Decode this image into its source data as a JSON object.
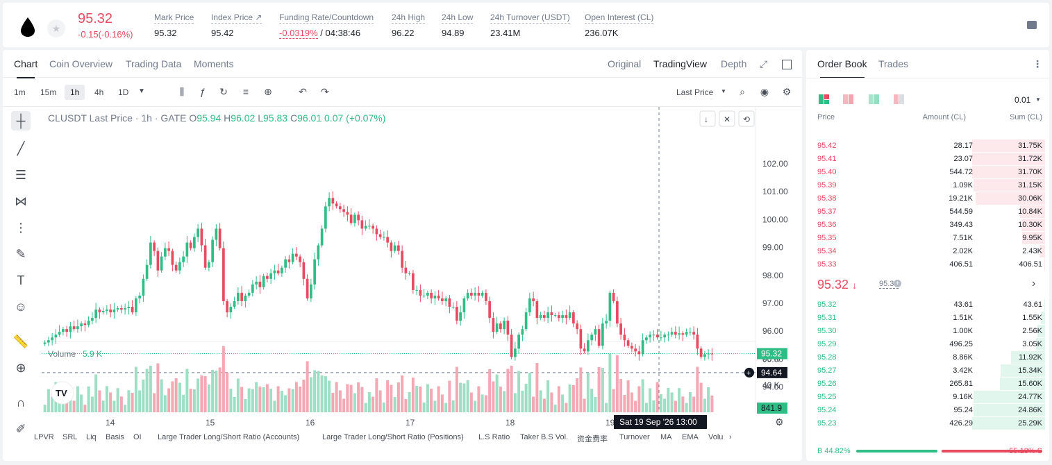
{
  "header": {
    "price": "95.32",
    "change": "-0.15(-0.16%)",
    "stats": [
      {
        "label": "Mark Price",
        "value": "95.32"
      },
      {
        "label": "Index Price ↗",
        "value": "95.42"
      },
      {
        "label": "Funding Rate/Countdown",
        "value_red": "-0.0319%",
        "value": " / 04:38:46"
      },
      {
        "label": "24h High",
        "value": "96.22"
      },
      {
        "label": "24h Low",
        "value": "94.89"
      },
      {
        "label": "24h Turnover (USDT)",
        "value": "23.41M"
      },
      {
        "label": "Open Interest (CL)",
        "value": "236.07K"
      }
    ]
  },
  "chart_tabs": [
    "Chart",
    "Coin Overview",
    "Trading Data",
    "Moments"
  ],
  "view_tabs": [
    "Original",
    "TradingView",
    "Depth"
  ],
  "intervals": [
    "1m",
    "15m",
    "1h",
    "4h",
    "1D"
  ],
  "price_type": "Last Price",
  "legend": {
    "symbol": "CLUSDT Last Price · 1h · GATE",
    "o": "95.94",
    "h": "96.02",
    "l": "95.83",
    "c": "96.01",
    "chg": "0.07 (+0.07%)"
  },
  "volume": {
    "label": "Volume",
    "value": "5.9 K",
    "last": "841.9"
  },
  "price_axis": [
    "102.00",
    "101.00",
    "100.00",
    "99.00",
    "98.00",
    "97.00",
    "96.00",
    "95.00",
    "94.00"
  ],
  "vol_axis": [
    "80 K",
    "40 K"
  ],
  "last_price_tag": "95.32",
  "cursor_price_tag": "94.64",
  "time_axis": [
    "14",
    "15",
    "16",
    "17",
    "18",
    "19"
  ],
  "crosshair_time": "Sat 19 Sep '26    13:00",
  "bottom_items": [
    "LPVR",
    "SRL",
    "Liq",
    "Basis",
    "OI",
    "Large Trader Long/Short Ratio (Accounts)",
    "Large Trader Long/Short Ratio (Positions)",
    "L.S Ratio",
    "Taker B.S Vol.",
    "资金费率",
    "Turnover",
    "MA",
    "EMA",
    "Volu"
  ],
  "orderbook": {
    "tabs": [
      "Order Book",
      "Trades"
    ],
    "precision": "0.01",
    "headers": [
      "Price",
      "Amount (CL)",
      "Sum (CL)"
    ],
    "asks": [
      {
        "p": "95.42",
        "a": "28.17",
        "s": "31.75K",
        "d": 1.0
      },
      {
        "p": "95.41",
        "a": "23.07",
        "s": "31.72K",
        "d": 1.0
      },
      {
        "p": "95.40",
        "a": "544.72",
        "s": "31.70K",
        "d": 1.0
      },
      {
        "p": "95.39",
        "a": "1.09K",
        "s": "31.15K",
        "d": 0.98
      },
      {
        "p": "95.38",
        "a": "19.21K",
        "s": "30.06K",
        "d": 0.95
      },
      {
        "p": "95.37",
        "a": "544.59",
        "s": "10.84K",
        "d": 0.34
      },
      {
        "p": "95.36",
        "a": "349.43",
        "s": "10.30K",
        "d": 0.32
      },
      {
        "p": "95.35",
        "a": "7.51K",
        "s": "9.95K",
        "d": 0.31
      },
      {
        "p": "95.34",
        "a": "2.02K",
        "s": "2.43K",
        "d": 0.08
      },
      {
        "p": "95.33",
        "a": "406.51",
        "s": "406.51",
        "d": 0.01
      }
    ],
    "mid": {
      "price": "95.32",
      "mark": "95.32"
    },
    "bids": [
      {
        "p": "95.32",
        "a": "43.61",
        "s": "43.61",
        "d": 0.01
      },
      {
        "p": "95.31",
        "a": "1.51K",
        "s": "1.55K",
        "d": 0.06
      },
      {
        "p": "95.30",
        "a": "1.00K",
        "s": "2.56K",
        "d": 0.1
      },
      {
        "p": "95.29",
        "a": "496.25",
        "s": "3.05K",
        "d": 0.12
      },
      {
        "p": "95.28",
        "a": "8.86K",
        "s": "11.92K",
        "d": 0.47
      },
      {
        "p": "95.27",
        "a": "3.42K",
        "s": "15.34K",
        "d": 0.61
      },
      {
        "p": "95.26",
        "a": "265.81",
        "s": "15.60K",
        "d": 0.62
      },
      {
        "p": "95.25",
        "a": "9.16K",
        "s": "24.77K",
        "d": 0.98
      },
      {
        "p": "95.24",
        "a": "95.24",
        "s": "24.86K",
        "d": 0.98
      },
      {
        "p": "95.23",
        "a": "426.29",
        "s": "25.29K",
        "d": 1.0
      }
    ],
    "ratio": {
      "buy": "B 44.82%",
      "sell": "55.18% S",
      "buy_frac": 0.4482
    }
  },
  "colors": {
    "up": "#2ebd85",
    "down": "#e84a5f"
  }
}
